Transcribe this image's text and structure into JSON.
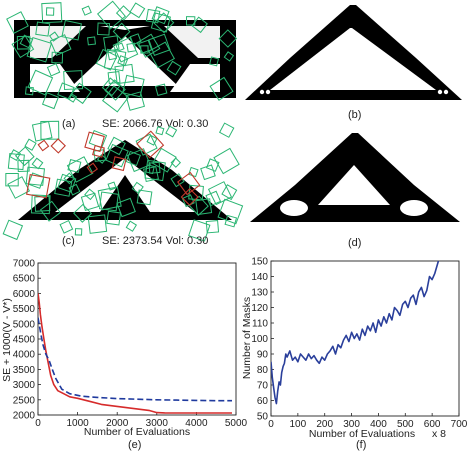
{
  "panels": {
    "a": {
      "label": "(a)",
      "caption": "SE: 2066.76  Vol: 0.30"
    },
    "b": {
      "label": "(b)"
    },
    "c": {
      "label": "(c)",
      "caption": "SE: 2373.54  Vol: 0.30"
    },
    "d": {
      "label": "(d)"
    },
    "e": {
      "label": "(e)"
    },
    "f": {
      "label": "(f)"
    }
  },
  "colors": {
    "structure": "#000000",
    "mask_green": "#2bb673",
    "mask_red": "#c0392b",
    "chart_e_red": "#d62b2b",
    "chart_e_blue": "#1f3a9e",
    "chart_f_blue": "#2a3f9b"
  },
  "chart_data": [
    {
      "id": "e",
      "type": "line",
      "xlabel": "Number of Evaluations",
      "ylabel": "SE + 1000(V - V*)",
      "xlim": [
        0,
        5000
      ],
      "ylim": [
        2000,
        7000
      ],
      "xticks": [
        "0",
        "1000",
        "2000",
        "3000",
        "4000",
        "5000"
      ],
      "yticks": [
        "2000",
        "2500",
        "3000",
        "3500",
        "4000",
        "4500",
        "5000",
        "5500",
        "6000",
        "6500",
        "7000"
      ],
      "grid": false,
      "series": [
        {
          "style": "solid",
          "color": "#d62b2b",
          "x": [
            0,
            30,
            60,
            100,
            150,
            200,
            260,
            320,
            400,
            500,
            650,
            800,
            1000,
            1300,
            1600,
            1900,
            2200,
            2500,
            2800,
            3000,
            3200,
            3500,
            4000,
            4500,
            4900
          ],
          "y": [
            6000,
            5700,
            5300,
            4900,
            4500,
            4100,
            3700,
            3300,
            3000,
            2800,
            2700,
            2600,
            2550,
            2450,
            2350,
            2300,
            2250,
            2200,
            2150,
            2080,
            2070,
            2067,
            2067,
            2067,
            2067
          ]
        },
        {
          "style": "dashed",
          "color": "#1f3a9e",
          "x": [
            0,
            40,
            80,
            130,
            200,
            280,
            360,
            450,
            600,
            800,
            1100,
            1500,
            2000,
            2500,
            3000,
            3500,
            4000,
            4500,
            4900
          ],
          "y": [
            5200,
            4900,
            4600,
            4300,
            4000,
            3800,
            3500,
            3200,
            2850,
            2700,
            2620,
            2580,
            2540,
            2520,
            2500,
            2490,
            2480,
            2470,
            2470
          ]
        }
      ]
    },
    {
      "id": "f",
      "type": "line",
      "xlabel": "Number of Evaluations",
      "xlabel_suffix": "x 8",
      "ylabel": "Number of Masks",
      "xlim": [
        0,
        700
      ],
      "ylim": [
        50,
        150
      ],
      "xticks": [
        "0",
        "100",
        "200",
        "300",
        "400",
        "500",
        "600",
        "700"
      ],
      "yticks": [
        "50",
        "60",
        "70",
        "80",
        "90",
        "100",
        "110",
        "120",
        "130",
        "140",
        "150"
      ],
      "grid": false,
      "series": [
        {
          "style": "solid",
          "color": "#2a3f9b",
          "x": [
            0,
            5,
            10,
            15,
            20,
            25,
            30,
            35,
            40,
            45,
            50,
            55,
            60,
            70,
            80,
            90,
            100,
            110,
            120,
            130,
            140,
            150,
            160,
            170,
            180,
            190,
            200,
            210,
            220,
            230,
            240,
            250,
            260,
            270,
            280,
            290,
            300,
            310,
            320,
            330,
            340,
            350,
            360,
            370,
            380,
            390,
            400,
            410,
            420,
            430,
            440,
            450,
            460,
            470,
            480,
            490,
            500,
            510,
            520,
            530,
            540,
            550,
            560,
            570,
            580,
            590,
            600,
            610,
            620,
            625
          ],
          "y": [
            85,
            75,
            68,
            62,
            58,
            66,
            72,
            70,
            78,
            82,
            84,
            90,
            88,
            92,
            86,
            88,
            85,
            90,
            88,
            86,
            90,
            87,
            89,
            86,
            84,
            88,
            86,
            90,
            92,
            95,
            90,
            96,
            94,
            99,
            102,
            98,
            104,
            100,
            103,
            99,
            106,
            102,
            108,
            105,
            110,
            104,
            112,
            108,
            114,
            110,
            116,
            112,
            120,
            118,
            115,
            122,
            124,
            120,
            126,
            128,
            122,
            130,
            133,
            127,
            131,
            140,
            138,
            142,
            148,
            151
          ]
        }
      ]
    }
  ]
}
